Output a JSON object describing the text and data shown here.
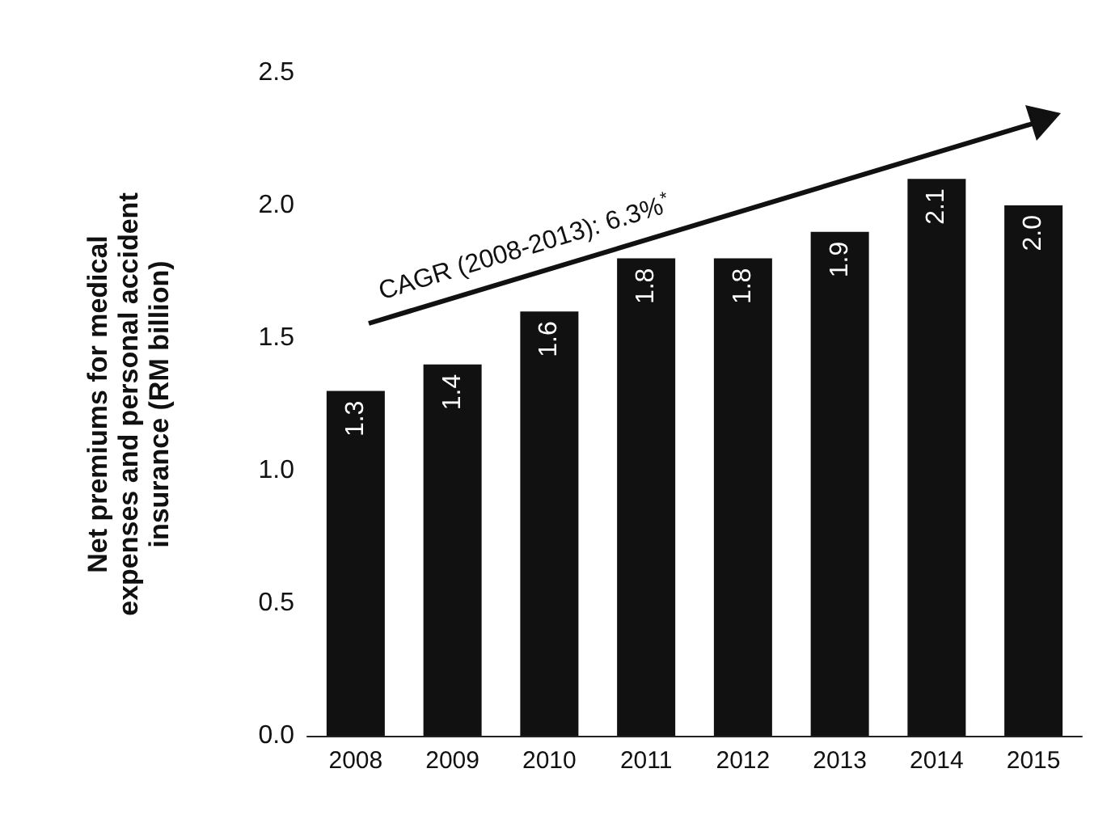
{
  "chart_data": {
    "type": "bar",
    "ylabel": "Net premiums for medical expenses and personal accident insurance (RM billion)",
    "categories": [
      "2008",
      "2009",
      "2010",
      "2011",
      "2012",
      "2013",
      "2014",
      "2015"
    ],
    "values": [
      1.3,
      1.4,
      1.6,
      1.8,
      1.8,
      1.9,
      2.1,
      2.0
    ],
    "color": "#111111",
    "ylim": [
      0,
      2.5
    ],
    "yticks": [
      {
        "value": 0,
        "label": "0.0"
      },
      {
        "value": 0.5,
        "label": "0.5"
      },
      {
        "value": 1,
        "label": "1.0"
      },
      {
        "value": 1.5,
        "label": "1.5"
      },
      {
        "value": 2,
        "label": "2.0"
      },
      {
        "value": 2.5,
        "label": "2.5"
      }
    ],
    "value_labels": [
      "1.3",
      "1.4",
      "1.6",
      "1.8",
      "1.8",
      "1.9",
      "2.1",
      "2.0"
    ],
    "grid": false,
    "annotations": [
      "CAGR (2008-2013): 6.3%$^{*}$"
    ]
  }
}
